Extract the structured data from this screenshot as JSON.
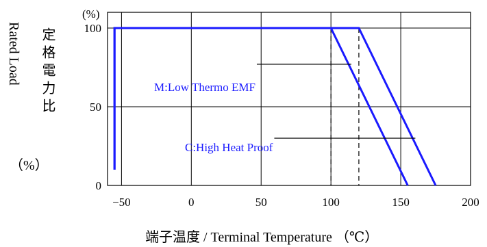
{
  "chart_data": {
    "type": "line",
    "xlabel": "端子温度 / Terminal Temperature （℃）",
    "ylabel_en": "Rated Load",
    "ylabel_jp": "定格電力比",
    "ylabel_unit": "（%）",
    "y_unit_tick": "(%)",
    "xlim": [
      -60,
      200
    ],
    "ylim": [
      0,
      110
    ],
    "x_ticks": [
      -50,
      0,
      50,
      100,
      150,
      200
    ],
    "y_ticks": [
      0,
      50,
      100
    ],
    "grid": true,
    "colors": {
      "series": "#1a1aff",
      "grid": "#000000",
      "ref": "#000000"
    },
    "series": [
      {
        "name": "M:Low Thermo EMF",
        "x": [
          -55,
          -55,
          100,
          155
        ],
        "y": [
          10,
          100,
          100,
          0
        ]
      },
      {
        "name": "C:High Heat Proof",
        "x": [
          -55,
          -55,
          120,
          175
        ],
        "y": [
          10,
          100,
          100,
          0
        ]
      }
    ],
    "reference_lines_x": [
      100,
      120
    ],
    "annotations": [
      {
        "text": "M:Low Thermo EMF",
        "series": 0,
        "at_y": 77
      },
      {
        "text": "C:High Heat Proof",
        "series": 1,
        "at_y": 30
      }
    ]
  }
}
